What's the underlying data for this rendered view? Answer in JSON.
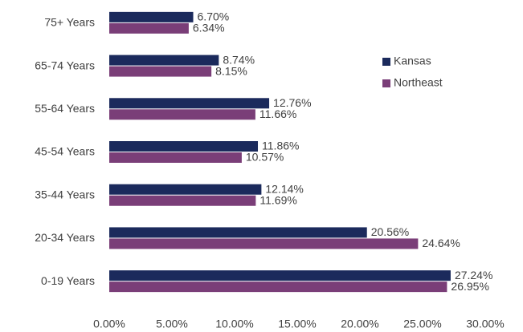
{
  "chart_data": {
    "type": "bar",
    "orientation": "horizontal",
    "categories": [
      "75+ Years",
      "65-74 Years",
      "55-64 Years",
      "45-54 Years",
      "35-44 Years",
      "20-34 Years",
      "0-19 Years"
    ],
    "series": [
      {
        "name": "Kansas",
        "color": "#1b2a5c",
        "values": [
          6.7,
          8.74,
          12.76,
          11.86,
          12.14,
          20.56,
          27.24
        ],
        "value_labels": [
          "6.70%",
          "8.74%",
          "12.76%",
          "11.86%",
          "12.14%",
          "20.56%",
          "27.24%"
        ]
      },
      {
        "name": "Northeast",
        "color": "#7a3e78",
        "values": [
          6.34,
          8.15,
          11.66,
          10.57,
          11.69,
          24.64,
          26.95
        ],
        "value_labels": [
          "6.34%",
          "8.15%",
          "11.66%",
          "10.57%",
          "11.69%",
          "24.64%",
          "26.95%"
        ]
      }
    ],
    "xlim": [
      0,
      30
    ],
    "xticks": [
      {
        "value": 0,
        "label": "0.00%"
      },
      {
        "value": 5,
        "label": "5.00%"
      },
      {
        "value": 10,
        "label": "10.00%"
      },
      {
        "value": 15,
        "label": "15.00%"
      },
      {
        "value": 20,
        "label": "20.00%"
      },
      {
        "value": 25,
        "label": "25.00%"
      },
      {
        "value": 30,
        "label": "30.00%"
      }
    ],
    "grid": false,
    "legend": "upper right"
  }
}
